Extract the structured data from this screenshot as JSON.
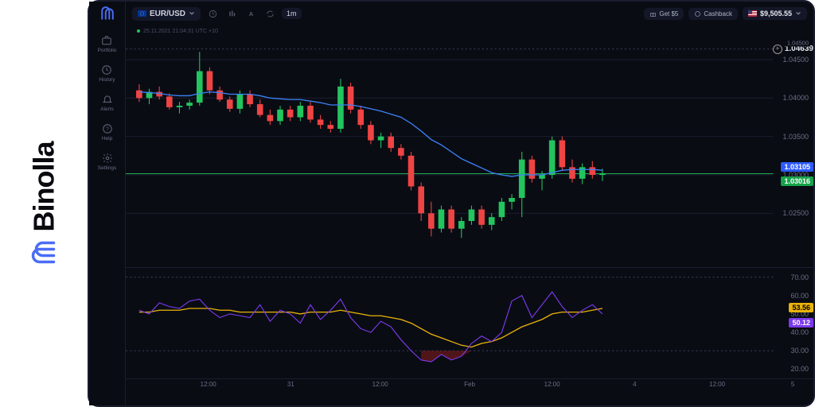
{
  "brand": {
    "name": "Binolla",
    "logo_color": "#4a6cf7"
  },
  "sidebar": {
    "items": [
      {
        "label": "Portfolio"
      },
      {
        "label": "History"
      },
      {
        "label": "Alerts"
      },
      {
        "label": "Help"
      },
      {
        "label": "Settings"
      }
    ]
  },
  "topbar": {
    "pair": "EUR/USD",
    "timeframe": "1m",
    "timestamp": "25.11.2021  21:04:31  UTC +10",
    "get5": "Get $5",
    "cashback": "Cashback",
    "balance": "$9,505.55"
  },
  "price_chart": {
    "type": "candlestick",
    "ylim": [
      1.018,
      1.048
    ],
    "yticks": [
      1.025,
      1.03,
      1.035,
      1.04,
      1.045
    ],
    "ylabels": [
      "1.02500",
      "1.03000",
      "1.03500",
      "1.04000",
      "1.04500"
    ],
    "crosshair_value": "1.04639",
    "line_tag_blue": "1.03105",
    "line_tag_green": "1.03016",
    "secondary_y_hint": "1.04500",
    "up_color": "#22c55e",
    "down_color": "#ef4444",
    "ma_color": "#3b82f6",
    "bg_color": "#0a0c14",
    "grid_color": "#1a1d2e",
    "dash_color": "#3a3f55",
    "blue_tag_bg": "#2e5cff",
    "green_tag_bg": "#16a34a",
    "candles": [
      {
        "o": 1.041,
        "h": 1.0418,
        "l": 1.0395,
        "c": 1.04
      },
      {
        "o": 1.04,
        "h": 1.0412,
        "l": 1.0392,
        "c": 1.0408
      },
      {
        "o": 1.0408,
        "h": 1.0415,
        "l": 1.0398,
        "c": 1.0402
      },
      {
        "o": 1.0402,
        "h": 1.0406,
        "l": 1.0385,
        "c": 1.0388
      },
      {
        "o": 1.0388,
        "h": 1.0395,
        "l": 1.038,
        "c": 1.039
      },
      {
        "o": 1.039,
        "h": 1.0398,
        "l": 1.0385,
        "c": 1.0394
      },
      {
        "o": 1.0394,
        "h": 1.046,
        "l": 1.039,
        "c": 1.0435
      },
      {
        "o": 1.0435,
        "h": 1.044,
        "l": 1.0405,
        "c": 1.041
      },
      {
        "o": 1.041,
        "h": 1.0415,
        "l": 1.0395,
        "c": 1.0398
      },
      {
        "o": 1.0398,
        "h": 1.0402,
        "l": 1.0382,
        "c": 1.0386
      },
      {
        "o": 1.0386,
        "h": 1.041,
        "l": 1.038,
        "c": 1.0405
      },
      {
        "o": 1.0405,
        "h": 1.041,
        "l": 1.0388,
        "c": 1.0392
      },
      {
        "o": 1.0392,
        "h": 1.0398,
        "l": 1.0375,
        "c": 1.0378
      },
      {
        "o": 1.0378,
        "h": 1.0385,
        "l": 1.0365,
        "c": 1.037
      },
      {
        "o": 1.037,
        "h": 1.039,
        "l": 1.0365,
        "c": 1.0385
      },
      {
        "o": 1.0385,
        "h": 1.039,
        "l": 1.037,
        "c": 1.0375
      },
      {
        "o": 1.0375,
        "h": 1.0395,
        "l": 1.037,
        "c": 1.039
      },
      {
        "o": 1.039,
        "h": 1.0395,
        "l": 1.0368,
        "c": 1.0372
      },
      {
        "o": 1.0372,
        "h": 1.0378,
        "l": 1.036,
        "c": 1.0365
      },
      {
        "o": 1.0365,
        "h": 1.037,
        "l": 1.0355,
        "c": 1.036
      },
      {
        "o": 1.036,
        "h": 1.0425,
        "l": 1.0355,
        "c": 1.0415
      },
      {
        "o": 1.0415,
        "h": 1.042,
        "l": 1.038,
        "c": 1.0385
      },
      {
        "o": 1.0385,
        "h": 1.039,
        "l": 1.036,
        "c": 1.0365
      },
      {
        "o": 1.0365,
        "h": 1.037,
        "l": 1.034,
        "c": 1.0345
      },
      {
        "o": 1.0345,
        "h": 1.0355,
        "l": 1.0335,
        "c": 1.035
      },
      {
        "o": 1.035,
        "h": 1.0355,
        "l": 1.033,
        "c": 1.0335
      },
      {
        "o": 1.0335,
        "h": 1.034,
        "l": 1.032,
        "c": 1.0325
      },
      {
        "o": 1.0325,
        "h": 1.033,
        "l": 1.028,
        "c": 1.0285
      },
      {
        "o": 1.0285,
        "h": 1.029,
        "l": 1.024,
        "c": 1.025
      },
      {
        "o": 1.025,
        "h": 1.0265,
        "l": 1.022,
        "c": 1.023
      },
      {
        "o": 1.023,
        "h": 1.026,
        "l": 1.0225,
        "c": 1.0255
      },
      {
        "o": 1.0255,
        "h": 1.026,
        "l": 1.0225,
        "c": 1.023
      },
      {
        "o": 1.023,
        "h": 1.0245,
        "l": 1.0218,
        "c": 1.024
      },
      {
        "o": 1.024,
        "h": 1.026,
        "l": 1.0235,
        "c": 1.0255
      },
      {
        "o": 1.0255,
        "h": 1.026,
        "l": 1.023,
        "c": 1.0235
      },
      {
        "o": 1.0235,
        "h": 1.025,
        "l": 1.0228,
        "c": 1.0245
      },
      {
        "o": 1.0245,
        "h": 1.027,
        "l": 1.024,
        "c": 1.0265
      },
      {
        "o": 1.0265,
        "h": 1.0275,
        "l": 1.0255,
        "c": 1.027
      },
      {
        "o": 1.027,
        "h": 1.033,
        "l": 1.0245,
        "c": 1.032
      },
      {
        "o": 1.032,
        "h": 1.0325,
        "l": 1.029,
        "c": 1.0295
      },
      {
        "o": 1.0295,
        "h": 1.0305,
        "l": 1.028,
        "c": 1.03
      },
      {
        "o": 1.03,
        "h": 1.035,
        "l": 1.0295,
        "c": 1.0345
      },
      {
        "o": 1.0345,
        "h": 1.035,
        "l": 1.0305,
        "c": 1.031
      },
      {
        "o": 1.031,
        "h": 1.032,
        "l": 1.029,
        "c": 1.0295
      },
      {
        "o": 1.0295,
        "h": 1.0315,
        "l": 1.0288,
        "c": 1.031
      },
      {
        "o": 1.031,
        "h": 1.0318,
        "l": 1.0295,
        "c": 1.03
      },
      {
        "o": 1.03,
        "h": 1.0308,
        "l": 1.0292,
        "c": 1.0302
      }
    ],
    "ma": [
      1.0408,
      1.0407,
      1.0406,
      1.0404,
      1.0403,
      1.0403,
      1.0406,
      1.0408,
      1.0407,
      1.0405,
      1.0405,
      1.0405,
      1.0403,
      1.04,
      1.0399,
      1.0398,
      1.0398,
      1.0396,
      1.0394,
      1.0391,
      1.0391,
      1.0391,
      1.0389,
      1.0386,
      1.0383,
      1.0379,
      1.0375,
      1.0367,
      1.0357,
      1.0346,
      1.0339,
      1.033,
      1.0321,
      1.0315,
      1.0309,
      1.0303,
      1.03,
      1.0298,
      1.03,
      1.03,
      1.03,
      1.0303,
      1.0306,
      1.0307,
      1.0307,
      1.0307,
      1.0306
    ]
  },
  "x_axis": {
    "ticks": [
      {
        "x": 0.12,
        "label": "12:00"
      },
      {
        "x": 0.24,
        "label": "31"
      },
      {
        "x": 0.37,
        "label": "12:00"
      },
      {
        "x": 0.5,
        "label": "Feb"
      },
      {
        "x": 0.62,
        "label": "12:00"
      },
      {
        "x": 0.74,
        "label": "4"
      },
      {
        "x": 0.86,
        "label": "12:00"
      },
      {
        "x": 0.97,
        "label": "5"
      }
    ]
  },
  "rsi_chart": {
    "type": "oscillator",
    "ylim": [
      15,
      75
    ],
    "yticks": [
      20,
      30,
      40,
      50,
      60,
      70
    ],
    "ylabels": [
      "20.00",
      "30.00",
      "40.00",
      "50.00",
      "60.00",
      "70.00"
    ],
    "dash_levels": [
      30,
      70
    ],
    "tag_yellow": "53.56",
    "tag_purple": "50.12",
    "yellow_bg": "#eab308",
    "purple_bg": "#7c3aed",
    "purple_line": [
      52,
      50,
      56,
      54,
      53,
      57,
      58,
      52,
      48,
      50,
      49,
      48,
      55,
      46,
      52,
      50,
      45,
      55,
      47,
      52,
      58,
      48,
      42,
      40,
      46,
      43,
      36,
      30,
      25,
      24,
      28,
      25,
      27,
      34,
      38,
      35,
      40,
      57,
      60,
      48,
      55,
      62,
      54,
      48,
      52,
      55,
      50
    ],
    "yellow_line": [
      51,
      51,
      52,
      52,
      52,
      53,
      53,
      53,
      52,
      52,
      51,
      51,
      51,
      51,
      51,
      51,
      50,
      51,
      51,
      51,
      52,
      51,
      50,
      49,
      49,
      48,
      47,
      45,
      42,
      39,
      37,
      35,
      33,
      32,
      34,
      35,
      37,
      40,
      43,
      45,
      47,
      50,
      51,
      51,
      51,
      52,
      53
    ]
  }
}
